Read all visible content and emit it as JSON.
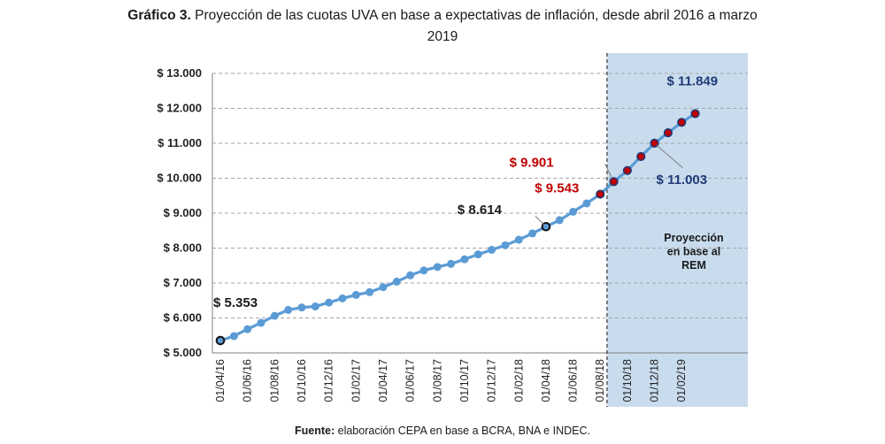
{
  "title": {
    "lead": "Gráfico 3.",
    "line1": " Proyección de las cuotas UVA en base a expectativas de inflación, desde abril 2016 a marzo",
    "line2": "2019"
  },
  "source": {
    "lead": "Fuente:",
    "text": " elaboración CEPA en base a BCRA, BNA e INDEC."
  },
  "colors": {
    "line": "#5b9bd5",
    "projection_band": "#c9dcee",
    "highlight_red": "#c00000",
    "highlight_navy": "#1f3a78",
    "grid": "#a6a6a6"
  },
  "chart_data": {
    "type": "line",
    "ylim": [
      5000,
      13000
    ],
    "yticks": [
      5000,
      6000,
      7000,
      8000,
      9000,
      10000,
      11000,
      12000,
      13000
    ],
    "ytick_labels": [
      "$ 5.000",
      "$ 6.000",
      "$ 7.000",
      "$ 8.000",
      "$ 9.000",
      "$ 10.000",
      "$ 11.000",
      "$ 12.000",
      "$ 13.000"
    ],
    "grid": "horizontal dashed",
    "x": [
      "01/04/16",
      "01/05/16",
      "01/06/16",
      "01/07/16",
      "01/08/16",
      "01/09/16",
      "01/10/16",
      "01/11/16",
      "01/12/16",
      "01/01/17",
      "01/02/17",
      "01/03/17",
      "01/04/17",
      "01/05/17",
      "01/06/17",
      "01/07/17",
      "01/08/17",
      "01/09/17",
      "01/10/17",
      "01/11/17",
      "01/12/17",
      "01/01/18",
      "01/02/18",
      "01/03/18",
      "01/04/18",
      "01/05/18",
      "01/06/18",
      "01/07/18",
      "01/08/18",
      "01/09/18",
      "01/10/18",
      "01/11/18",
      "01/12/18",
      "01/01/19",
      "01/02/19",
      "01/03/19"
    ],
    "xtick_labels": [
      "01/04/16",
      "01/06/16",
      "01/08/16",
      "01/10/16",
      "01/12/16",
      "01/02/17",
      "01/04/17",
      "01/06/17",
      "01/08/17",
      "01/10/17",
      "01/12/17",
      "01/02/18",
      "01/04/18",
      "01/06/18",
      "01/08/18",
      "01/10/18",
      "01/12/18",
      "01/02/19"
    ],
    "series": [
      {
        "values": [
          5353,
          5480,
          5680,
          5860,
          6060,
          6230,
          6300,
          6330,
          6440,
          6560,
          6660,
          6740,
          6880,
          7040,
          7220,
          7360,
          7460,
          7550,
          7680,
          7820,
          7950,
          8080,
          8240,
          8420,
          8614,
          8800,
          9040,
          9280,
          9543,
          9901,
          10220,
          10620,
          11003,
          11300,
          11600,
          11849
        ]
      }
    ],
    "projection_start": "01/09/18",
    "projection_label": [
      "Proyección",
      "en base al",
      "REM"
    ],
    "annotations": [
      {
        "text": "$ 5.353",
        "x": "01/04/16",
        "value": 5353,
        "color": "dark"
      },
      {
        "text": "$ 8.614",
        "x": "01/04/18",
        "value": 8614,
        "color": "dark"
      },
      {
        "text": "$ 9.543",
        "x": "01/08/18",
        "value": 9543,
        "color": "red"
      },
      {
        "text": "$ 9.901",
        "x": "01/09/18",
        "value": 9901,
        "color": "red"
      },
      {
        "text": "$ 11.003",
        "x": "01/12/18",
        "value": 11003,
        "color": "navy"
      },
      {
        "text": "$ 11.849",
        "x": "01/03/19",
        "value": 11849,
        "color": "navy"
      }
    ]
  }
}
